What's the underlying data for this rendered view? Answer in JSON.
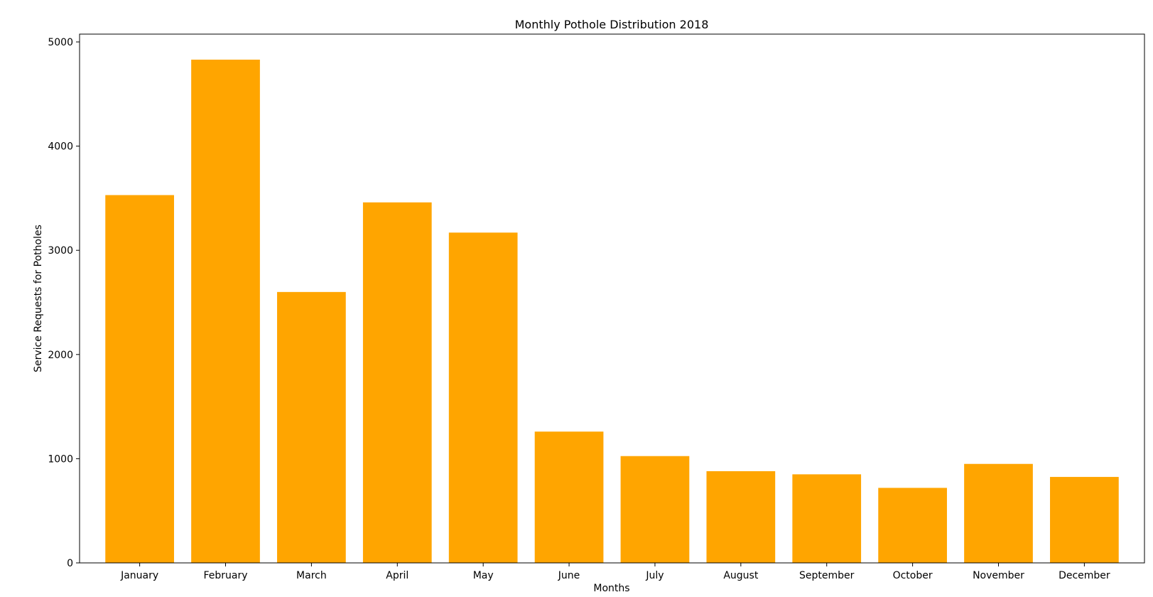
{
  "chart_data": {
    "type": "bar",
    "title": "Monthly Pothole Distribution 2018",
    "xlabel": "Months",
    "ylabel": "Service Requests for Potholes",
    "categories": [
      "January",
      "February",
      "March",
      "April",
      "May",
      "June",
      "July",
      "August",
      "September",
      "October",
      "November",
      "December"
    ],
    "values": [
      3530,
      4830,
      2600,
      3460,
      3170,
      1260,
      1025,
      880,
      850,
      720,
      950,
      825
    ],
    "ylim": [
      0,
      5075
    ],
    "yticks": [
      0,
      1000,
      2000,
      3000,
      4000,
      5000
    ],
    "grid": false,
    "colors": {
      "bar": "#ffa500",
      "axis": "#000000",
      "background": "#ffffff"
    }
  }
}
